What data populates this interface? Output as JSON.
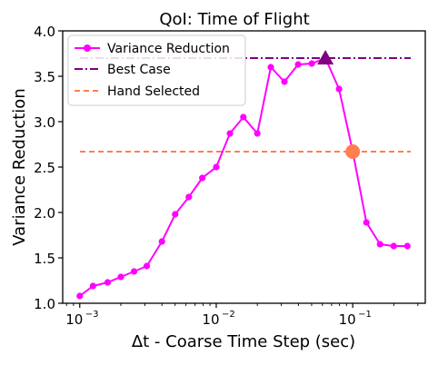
{
  "chart_data": {
    "type": "line",
    "title": "QoI: Time of Flight",
    "xlabel": "Δt - Coarse Time Step (sec)",
    "ylabel": "Variance Reduction",
    "xscale": "log",
    "xlim": [
      0.00075,
      0.34
    ],
    "ylim": [
      1.0,
      4.0
    ],
    "grid": false,
    "legend_placement": "top-left",
    "x_ticks": [
      {
        "value": 0.001,
        "base": "10",
        "exp": "−3"
      },
      {
        "value": 0.01,
        "base": "10",
        "exp": "−2"
      },
      {
        "value": 0.1,
        "base": "10",
        "exp": "−1"
      }
    ],
    "y_ticks": [
      {
        "value": 1.0,
        "label": "1.0"
      },
      {
        "value": 1.5,
        "label": "1.5"
      },
      {
        "value": 2.0,
        "label": "2.0"
      },
      {
        "value": 2.5,
        "label": "2.5"
      },
      {
        "value": 3.0,
        "label": "3.0"
      },
      {
        "value": 3.5,
        "label": "3.5"
      },
      {
        "value": 4.0,
        "label": "4.0"
      }
    ],
    "series": [
      {
        "name": "Variance Reduction",
        "color": "#ff00ff",
        "style": "line-with-circle-markers",
        "x": [
          0.001,
          0.00125,
          0.0016,
          0.002,
          0.0025,
          0.0031,
          0.004,
          0.005,
          0.0063,
          0.0079,
          0.01,
          0.0126,
          0.0158,
          0.02,
          0.0251,
          0.0316,
          0.0398,
          0.0501,
          0.0631,
          0.0794,
          0.1,
          0.1259,
          0.1585,
          0.1995,
          0.2512
        ],
        "y": [
          1.08,
          1.19,
          1.23,
          1.29,
          1.35,
          1.41,
          1.68,
          1.98,
          2.17,
          2.38,
          2.5,
          2.87,
          3.05,
          2.87,
          3.6,
          3.44,
          3.63,
          3.64,
          3.7,
          3.36,
          2.67,
          1.89,
          1.65,
          1.63,
          1.63
        ]
      },
      {
        "name": "Best Case",
        "color": "#800080",
        "style": "dash-dot",
        "y": 3.7,
        "marker": {
          "shape": "triangle",
          "x": 0.0631,
          "y": 3.7
        }
      },
      {
        "name": "Hand Selected",
        "color": "#ff7f50",
        "style": "dashed",
        "y": 2.67,
        "marker": {
          "shape": "circle",
          "x": 0.1,
          "y": 2.67
        }
      }
    ]
  }
}
